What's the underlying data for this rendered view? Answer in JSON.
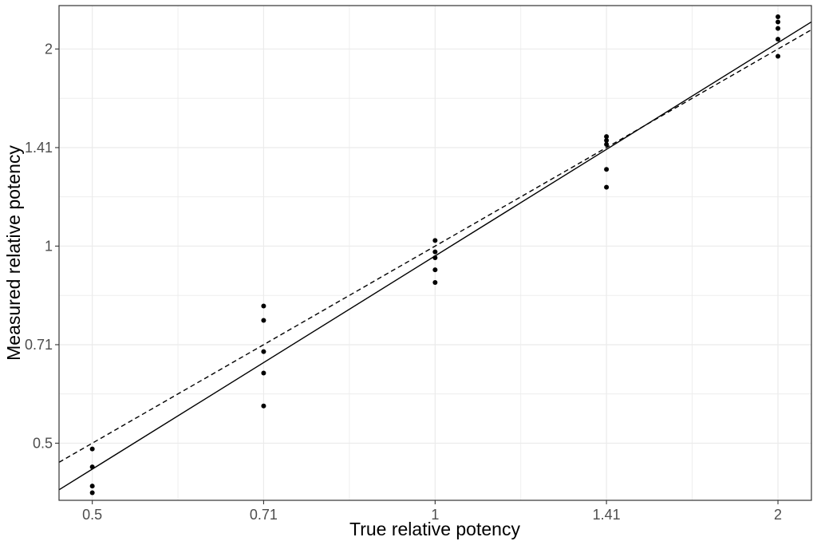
{
  "chart_data": {
    "type": "scatter",
    "title": "",
    "xlabel": "True relative potency",
    "ylabel": "Measured relative potency",
    "scale": "log2",
    "xlim": [
      0.4675,
      2.14
    ],
    "ylim": [
      0.409,
      2.33
    ],
    "grid": true,
    "x_ticks": [
      {
        "value": 0.5,
        "label": "0.5"
      },
      {
        "value": 0.707,
        "label": "0.71"
      },
      {
        "value": 1,
        "label": "1"
      },
      {
        "value": 1.414,
        "label": "1.41"
      },
      {
        "value": 2,
        "label": "2"
      }
    ],
    "y_ticks": [
      {
        "value": 0.5,
        "label": "0.5"
      },
      {
        "value": 0.707,
        "label": "0.71"
      },
      {
        "value": 1,
        "label": "1"
      },
      {
        "value": 1.414,
        "label": "1.41"
      },
      {
        "value": 2,
        "label": "2"
      }
    ],
    "points": [
      {
        "x": 0.5,
        "y": 0.49
      },
      {
        "x": 0.5,
        "y": 0.46
      },
      {
        "x": 0.5,
        "y": 0.43
      },
      {
        "x": 0.5,
        "y": 0.42
      },
      {
        "x": 0.5,
        "y": 0.38
      },
      {
        "x": 0.707,
        "y": 0.81
      },
      {
        "x": 0.707,
        "y": 0.77
      },
      {
        "x": 0.707,
        "y": 0.69
      },
      {
        "x": 0.707,
        "y": 0.64
      },
      {
        "x": 0.707,
        "y": 0.57
      },
      {
        "x": 1,
        "y": 1.02
      },
      {
        "x": 1,
        "y": 0.98
      },
      {
        "x": 1,
        "y": 0.96
      },
      {
        "x": 1,
        "y": 0.92
      },
      {
        "x": 1,
        "y": 0.88
      },
      {
        "x": 1.414,
        "y": 1.47
      },
      {
        "x": 1.414,
        "y": 1.45
      },
      {
        "x": 1.414,
        "y": 1.43
      },
      {
        "x": 1.414,
        "y": 1.31
      },
      {
        "x": 1.414,
        "y": 1.23
      },
      {
        "x": 2,
        "y": 2.24
      },
      {
        "x": 2,
        "y": 2.2
      },
      {
        "x": 2,
        "y": 2.15
      },
      {
        "x": 2,
        "y": 2.07
      },
      {
        "x": 2,
        "y": 1.95
      }
    ],
    "fit_line": {
      "style": "solid",
      "x": [
        0.4675,
        2.14
      ],
      "y": [
        0.4244,
        2.2
      ]
    },
    "reference_line": {
      "style": "dashed",
      "x": [
        0.4675,
        2.14
      ],
      "y": [
        0.4675,
        2.14
      ]
    },
    "colors": {
      "points": "#000000",
      "lines": "#000000",
      "grid": "#ebebeb",
      "panel_border": "#333333"
    }
  }
}
